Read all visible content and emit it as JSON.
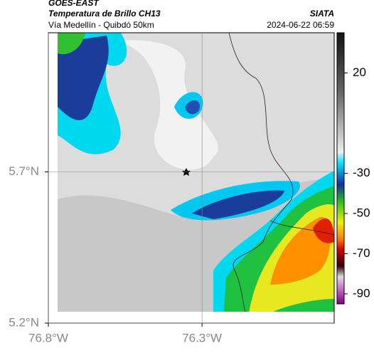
{
  "chart_data": {
    "type": "map",
    "title": "GOES-EAST",
    "subtitle": "Temperatura de Brillo CH13",
    "source": "SIATA",
    "region": "Vía Medellín - Quibdó 50km",
    "timestamp": "2024-06-22 06:59",
    "xlim": [
      -76.8,
      -75.87
    ],
    "ylim": [
      5.2,
      6.16
    ],
    "xticks": [
      {
        "value": -76.8,
        "label": "76.8°W"
      },
      {
        "value": -76.3,
        "label": "76.3°W"
      }
    ],
    "yticks": [
      {
        "value": 5.2,
        "label": "5.2°N"
      },
      {
        "value": 5.7,
        "label": "5.7°N"
      }
    ],
    "colorbar": {
      "lim": [
        40,
        -95
      ],
      "ticks": [
        20,
        -30,
        -50,
        -70,
        -90
      ]
    },
    "grid": true
  }
}
